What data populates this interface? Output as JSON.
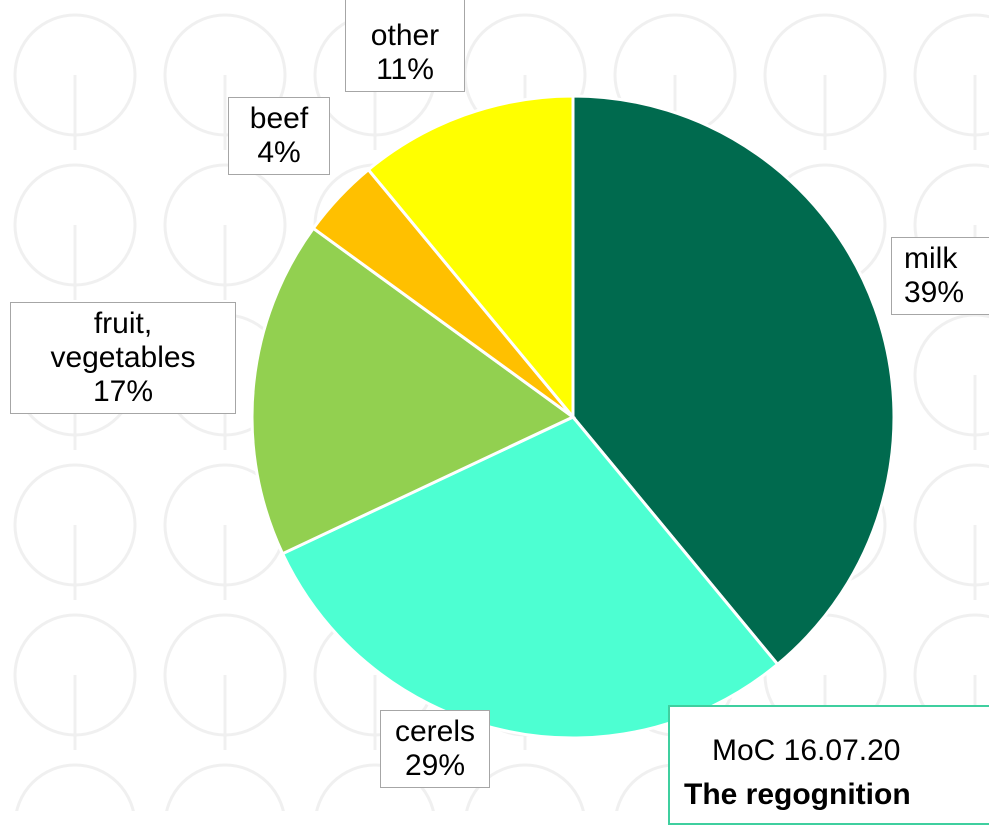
{
  "chart_data": {
    "type": "pie",
    "categories": [
      "milk",
      "cerels",
      "fruit,\nvegetables",
      "beef",
      "other"
    ],
    "values": [
      39,
      29,
      17,
      4,
      11
    ],
    "value_labels": [
      "39%",
      "29%",
      "17%",
      "4%",
      "11%"
    ],
    "colors": [
      "#006a4e",
      "#4dffd2",
      "#92d050",
      "#ffc000",
      "#ffff00"
    ],
    "annotation": [
      "MoC 16.07.20",
      "The regognition"
    ]
  }
}
